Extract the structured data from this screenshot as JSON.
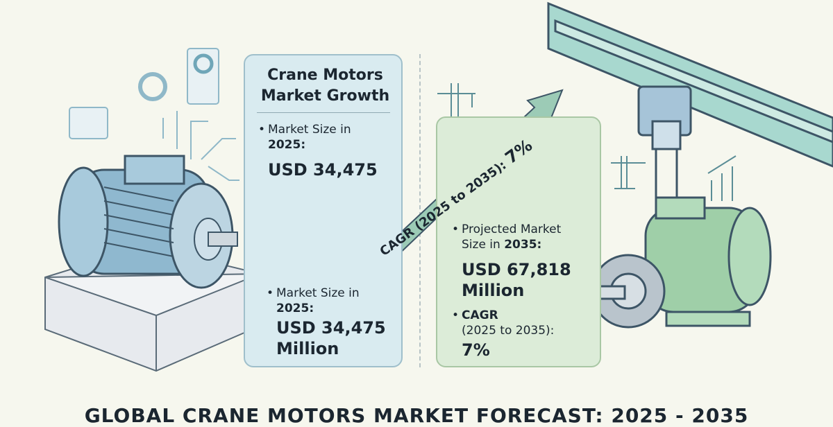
{
  "panel_left": {
    "title_line1": "Crane Motors",
    "title_line2": "Market Growth",
    "item1_label_line1": "Market Size in",
    "item1_label_line2": "2025:",
    "item1_value": "USD 34,475",
    "item2_label_line1": "Market Size in",
    "item2_label_line2": "2025:",
    "item2_value_line1": "USD 34,475",
    "item2_value_line2": "Million"
  },
  "arrow": {
    "label": "CAGR (2025 to 2035):",
    "value": "7%"
  },
  "panel_right": {
    "item1_label_line1": "Projected Market",
    "item1_label_line2_prefix": "Size in ",
    "item1_label_line2_year": "2035:",
    "item1_value_line1": "USD 67,818",
    "item1_value_line2": "Million",
    "item2_label_line1": "CAGR",
    "item2_label_line2": "(2025 to 2035):",
    "item2_value": "7%"
  },
  "footer": {
    "title": "GLOBAL CRANE MOTORS MARKET FORECAST: 2025 - 2035"
  },
  "colors": {
    "blue_panel": "#d9ebf0",
    "green_panel": "#dcecd8",
    "arrow": "#8fc3a8",
    "motor_blue": "#8fb8cf",
    "motor_green": "#9fcfa8"
  }
}
